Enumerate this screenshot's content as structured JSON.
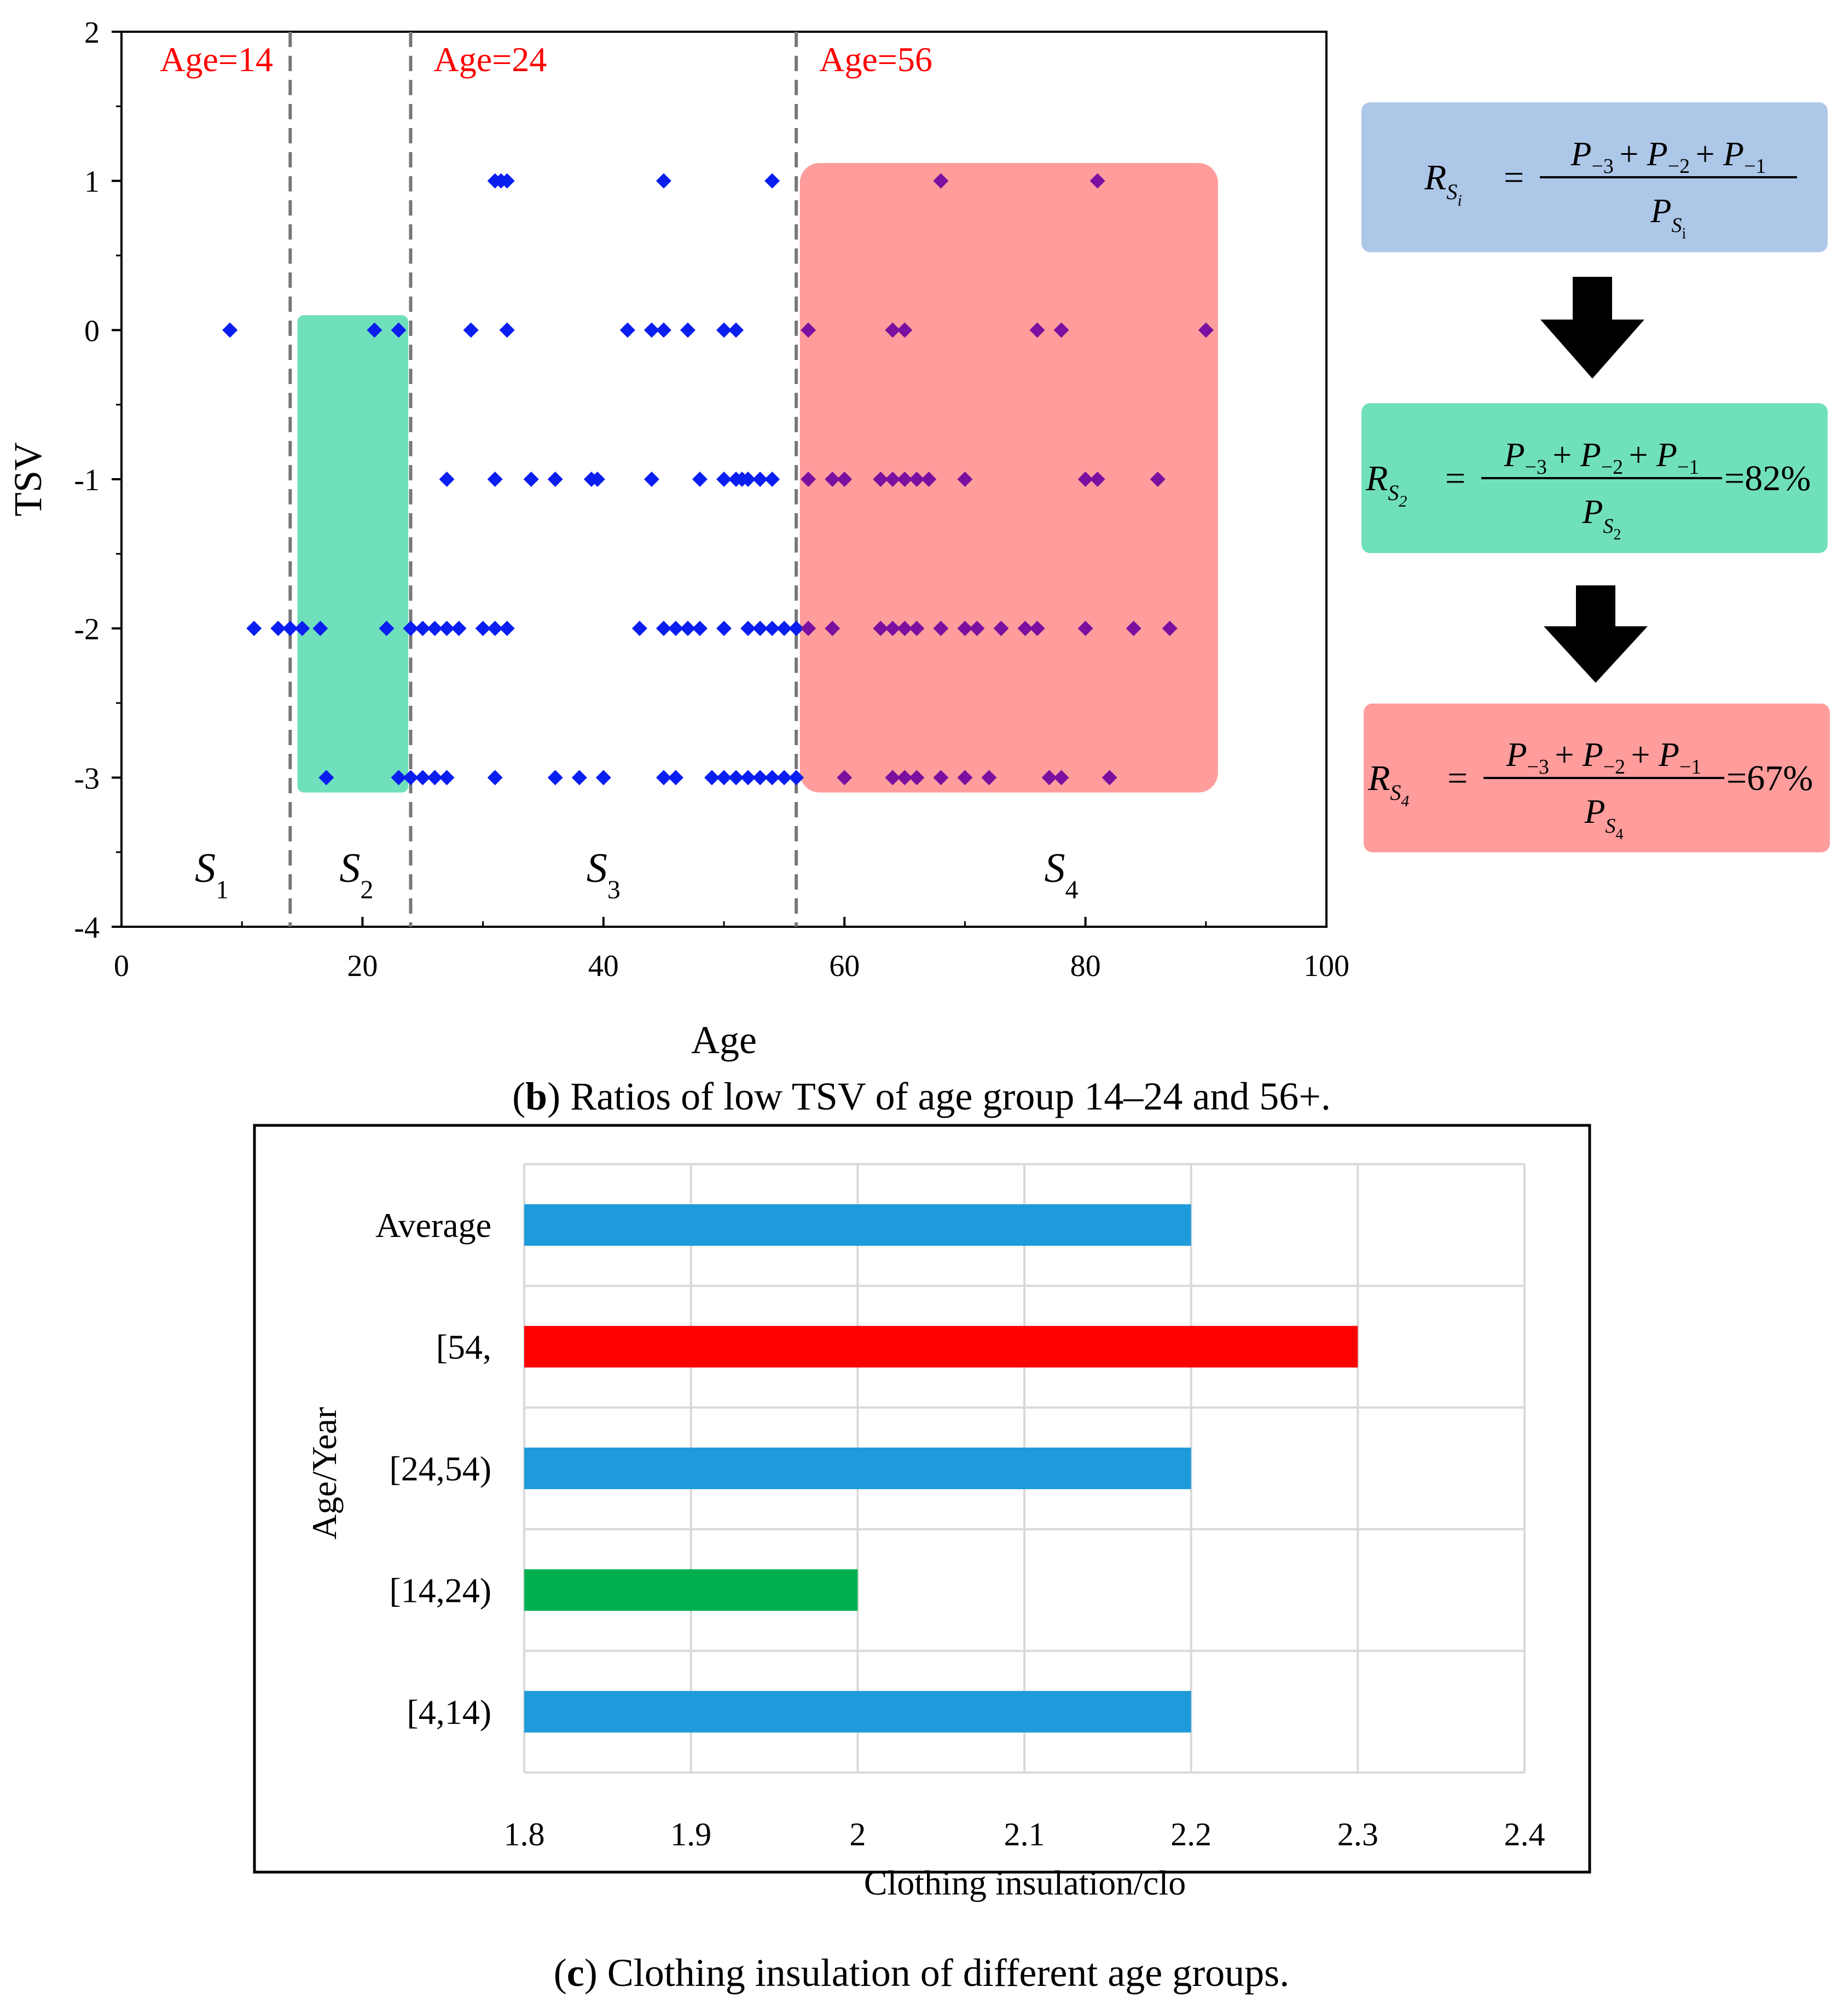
{
  "chart_data": [
    {
      "type": "scatter",
      "xlabel": "Age",
      "ylabel": "TSV",
      "xlim": [
        0,
        100
      ],
      "ylim": [
        -4,
        2
      ],
      "xticks": [
        0,
        20,
        40,
        60,
        80,
        100
      ],
      "yticks": [
        2,
        1,
        0,
        -1,
        -2,
        -3,
        -4
      ],
      "marker_color": "#0a1ef0",
      "marker_color_in_s4": "#7a0fa0",
      "dividers": [
        {
          "x": 14,
          "label": "Age=14"
        },
        {
          "x": 24,
          "label": "Age=24"
        },
        {
          "x": 56,
          "label": "Age=56"
        }
      ],
      "highlight_regions": [
        {
          "name": "S2",
          "x0": 14.6,
          "x1": 23.8,
          "y0": -3.1,
          "y1": 0.1,
          "color": "#6fe0bb"
        },
        {
          "name": "S4",
          "x0": 56.3,
          "x1": 91.0,
          "y0": -3.1,
          "y1": 1.12,
          "color": "#ff9c9c"
        }
      ],
      "segments": [
        {
          "main": "S",
          "sub": "1",
          "x": 7.5
        },
        {
          "main": "S",
          "sub": "2",
          "x": 19.5
        },
        {
          "main": "S",
          "sub": "3",
          "x": 40.0
        },
        {
          "main": "S",
          "sub": "4",
          "x": 78.0
        }
      ],
      "points": [
        [
          31,
          1
        ],
        [
          31.5,
          1
        ],
        [
          32,
          1
        ],
        [
          45,
          1
        ],
        [
          54,
          1
        ],
        [
          68,
          1
        ],
        [
          81,
          1
        ],
        [
          9,
          0
        ],
        [
          21,
          0
        ],
        [
          23,
          0
        ],
        [
          29,
          0
        ],
        [
          32,
          0
        ],
        [
          42,
          0
        ],
        [
          44,
          0
        ],
        [
          45,
          0
        ],
        [
          47,
          0
        ],
        [
          50,
          0
        ],
        [
          51,
          0
        ],
        [
          57,
          0
        ],
        [
          64,
          0
        ],
        [
          65,
          0
        ],
        [
          76,
          0
        ],
        [
          78,
          0
        ],
        [
          90,
          0
        ],
        [
          27,
          -1
        ],
        [
          31,
          -1
        ],
        [
          34,
          -1
        ],
        [
          36,
          -1
        ],
        [
          39,
          -1
        ],
        [
          39.5,
          -1
        ],
        [
          44,
          -1
        ],
        [
          48,
          -1
        ],
        [
          50,
          -1
        ],
        [
          51,
          -1
        ],
        [
          51.5,
          -1
        ],
        [
          52,
          -1
        ],
        [
          53,
          -1
        ],
        [
          54,
          -1
        ],
        [
          57,
          -1
        ],
        [
          59,
          -1
        ],
        [
          60,
          -1
        ],
        [
          63,
          -1
        ],
        [
          64,
          -1
        ],
        [
          65,
          -1
        ],
        [
          66,
          -1
        ],
        [
          67,
          -1
        ],
        [
          70,
          -1
        ],
        [
          80,
          -1
        ],
        [
          81,
          -1
        ],
        [
          86,
          -1
        ],
        [
          11,
          -2
        ],
        [
          13,
          -2
        ],
        [
          14,
          -2
        ],
        [
          15,
          -2
        ],
        [
          16.5,
          -2
        ],
        [
          22,
          -2
        ],
        [
          24,
          -2
        ],
        [
          25,
          -2
        ],
        [
          26,
          -2
        ],
        [
          27,
          -2
        ],
        [
          28,
          -2
        ],
        [
          30,
          -2
        ],
        [
          31,
          -2
        ],
        [
          32,
          -2
        ],
        [
          43,
          -2
        ],
        [
          45,
          -2
        ],
        [
          46,
          -2
        ],
        [
          47,
          -2
        ],
        [
          48,
          -2
        ],
        [
          50,
          -2
        ],
        [
          52,
          -2
        ],
        [
          53,
          -2
        ],
        [
          54,
          -2
        ],
        [
          55,
          -2
        ],
        [
          56,
          -2
        ],
        [
          57,
          -2
        ],
        [
          59,
          -2
        ],
        [
          63,
          -2
        ],
        [
          64,
          -2
        ],
        [
          65,
          -2
        ],
        [
          66,
          -2
        ],
        [
          68,
          -2
        ],
        [
          70,
          -2
        ],
        [
          71,
          -2
        ],
        [
          73,
          -2
        ],
        [
          75,
          -2
        ],
        [
          76,
          -2
        ],
        [
          80,
          -2
        ],
        [
          84,
          -2
        ],
        [
          87,
          -2
        ],
        [
          17,
          -3
        ],
        [
          23,
          -3
        ],
        [
          24,
          -3
        ],
        [
          25,
          -3
        ],
        [
          26,
          -3
        ],
        [
          27,
          -3
        ],
        [
          31,
          -3
        ],
        [
          36,
          -3
        ],
        [
          38,
          -3
        ],
        [
          40,
          -3
        ],
        [
          45,
          -3
        ],
        [
          46,
          -3
        ],
        [
          49,
          -3
        ],
        [
          50,
          -3
        ],
        [
          51,
          -3
        ],
        [
          52,
          -3
        ],
        [
          53,
          -3
        ],
        [
          54,
          -3
        ],
        [
          55,
          -3
        ],
        [
          56,
          -3
        ],
        [
          60,
          -3
        ],
        [
          64,
          -3
        ],
        [
          65,
          -3
        ],
        [
          66,
          -3
        ],
        [
          68,
          -3
        ],
        [
          70,
          -3
        ],
        [
          72,
          -3
        ],
        [
          77,
          -3
        ],
        [
          78,
          -3
        ],
        [
          82,
          -3
        ]
      ]
    },
    {
      "type": "bar",
      "orientation": "horizontal",
      "xlabel": "Clothing insulation/clo",
      "ylabel": "Age/Year",
      "xlim": [
        1.8,
        2.4
      ],
      "xticks": [
        "1.8",
        "1.9",
        "2",
        "2.1",
        "2.2",
        "2.3",
        "2.4"
      ],
      "categories": [
        "Average",
        "[54,",
        "[24,54)",
        "[14,24)",
        "[4,14)"
      ],
      "values": [
        2.2,
        2.3,
        2.2,
        2.0,
        2.2
      ],
      "colors": [
        "#1f9bdb",
        "#ff0000",
        "#1f9bdb",
        "#00b050",
        "#1f9bdb"
      ]
    }
  ],
  "formulas": [
    {
      "lhs_main": "R",
      "lhs_sub": "S",
      "lhs_subsub": "i",
      "numerator": [
        "P",
        "−3",
        "+",
        "P",
        "−2",
        "+",
        "P",
        "−1"
      ],
      "den_main": "P",
      "den_sub": "S",
      "den_subsub": "i",
      "result": "",
      "color": "#adc7e8"
    },
    {
      "lhs_main": "R",
      "lhs_sub": "S",
      "lhs_subsub": "2",
      "numerator": [
        "P",
        "−3",
        "+",
        "P",
        "−2",
        "+",
        "P",
        "−1"
      ],
      "den_main": "P",
      "den_sub": "S",
      "den_subsub": "2",
      "result": "=82%",
      "color": "#6fe0bb"
    },
    {
      "lhs_main": "R",
      "lhs_sub": "S",
      "lhs_subsub": "4",
      "numerator": [
        "P",
        "−3",
        "+",
        "P",
        "−2",
        "+",
        "P",
        "−1"
      ],
      "den_main": "P",
      "den_sub": "S",
      "den_subsub": "4",
      "result": "=67%",
      "color": "#ff9c9c"
    }
  ],
  "captions": {
    "b_letter": "b",
    "b_text": " Ratios of low TSV of age group 14–24 and 56+.",
    "c_letter": "c",
    "c_text": " Clothing insulation of different age groups."
  },
  "colors": {
    "divider": "#777777",
    "age_label": "#ff0000",
    "arrow": "#000000",
    "grid": "#d9d9d9"
  }
}
